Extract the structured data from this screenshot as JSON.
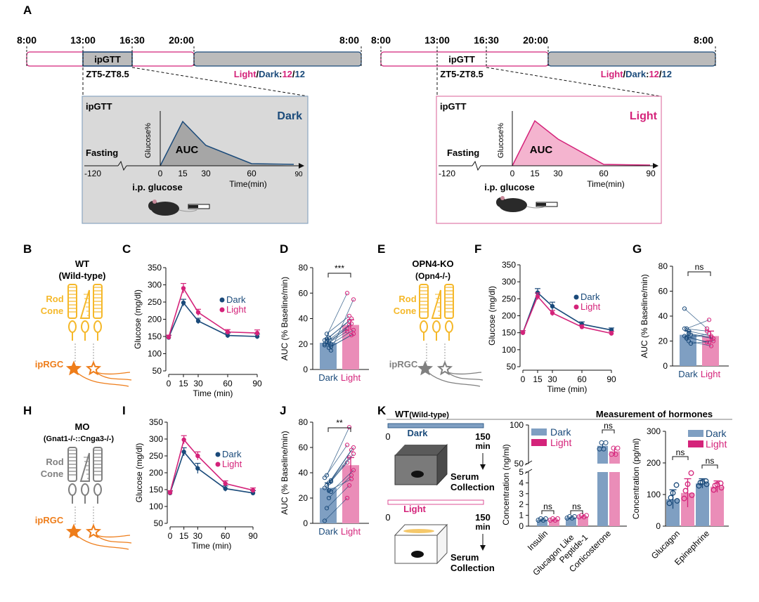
{
  "colors": {
    "dark": "#1a4a7a",
    "light": "#d4237a",
    "dark_bar": "#7f9fc2",
    "light_bar": "#ea8db8",
    "rod": "#f5b82a",
    "iprgc": "#ee7d1a",
    "inactive": "#808080"
  },
  "panel_labels": {
    "A": "A",
    "B": "B",
    "C": "C",
    "D": "D",
    "E": "E",
    "F": "F",
    "G": "G",
    "H": "H",
    "I": "I",
    "J": "J",
    "K": "K"
  },
  "timeline": {
    "times": [
      "8:00",
      "13:00",
      "16:30",
      "20:00",
      "8:00"
    ],
    "ipgtt": "ipGTT",
    "zt": "ZT5-ZT8.5",
    "light": "Light",
    "dark": "Dark",
    "n12": "12",
    "n12b": "12"
  },
  "schematic": {
    "title": "ipGTT",
    "dark": "Dark",
    "light": "Light",
    "fasting": "Fasting",
    "ylabel": "Glucose%",
    "auc": "AUC",
    "ticks": [
      "-120",
      "0",
      "15",
      "30",
      "60",
      "90"
    ],
    "xlabel": "Time(min)",
    "injection": "i.p. glucose"
  },
  "retina": {
    "wt_title": "WT",
    "wt_sub": "(Wild-type)",
    "ko_title": "OPN4-KO",
    "ko_sub": "(Opn4-/-)",
    "mo_title": "MO",
    "mo_sub": "(Gnat1-/-::Cnga3-/-)",
    "rod": "Rod",
    "cone": "Cone",
    "iprgc": "ipRGC"
  },
  "chart_data": [
    {
      "panel": "C",
      "type": "line",
      "x": [
        0,
        15,
        30,
        60,
        90
      ],
      "xticks": [
        "0",
        "15",
        "30",
        "60",
        "90"
      ],
      "ylim": [
        50,
        350
      ],
      "yticks": [
        50,
        100,
        150,
        200,
        250,
        300,
        350
      ],
      "xlabel": "Time (min)",
      "ylabel": "Glucose (mg/dl)",
      "series": [
        {
          "name": "Dark",
          "values": [
            147,
            248,
            195,
            153,
            150
          ],
          "err": [
            6,
            10,
            8,
            7,
            7
          ]
        },
        {
          "name": "Light",
          "values": [
            148,
            290,
            220,
            163,
            160
          ],
          "err": [
            6,
            14,
            9,
            7,
            9
          ]
        }
      ],
      "legend": "right"
    },
    {
      "panel": "D",
      "type": "bar",
      "categories": [
        "Dark",
        "Light"
      ],
      "values": [
        21,
        35
      ],
      "err": [
        3,
        4
      ],
      "ylim": [
        0,
        80
      ],
      "yticks": [
        0,
        20,
        40,
        60,
        80
      ],
      "ylabel": "AUC (% Baseline/min)",
      "significance": "***",
      "pairs": [
        [
          19,
          30
        ],
        [
          22,
          35
        ],
        [
          25,
          40
        ],
        [
          18,
          28
        ],
        [
          20,
          32
        ],
        [
          24,
          38
        ],
        [
          21,
          36
        ],
        [
          15,
          55
        ],
        [
          23,
          60
        ],
        [
          28,
          42
        ],
        [
          17,
          27
        ],
        [
          20,
          31
        ]
      ]
    },
    {
      "panel": "F",
      "type": "line",
      "x": [
        0,
        15,
        30,
        60,
        90
      ],
      "xticks": [
        "0",
        "15",
        "30",
        "60",
        "90"
      ],
      "ylim": [
        50,
        350
      ],
      "yticks": [
        50,
        100,
        150,
        200,
        250,
        300,
        350
      ],
      "xlabel": "Time (min)",
      "ylabel": "Glucose (mg/dl)",
      "series": [
        {
          "name": "Dark",
          "values": [
            150,
            268,
            228,
            175,
            158
          ],
          "err": [
            6,
            12,
            12,
            7,
            6
          ]
        },
        {
          "name": "Light",
          "values": [
            150,
            257,
            208,
            167,
            148
          ],
          "err": [
            6,
            10,
            8,
            6,
            6
          ]
        }
      ],
      "legend": "right"
    },
    {
      "panel": "G",
      "type": "bar",
      "categories": [
        "Dark",
        "Light"
      ],
      "values": [
        25,
        24
      ],
      "err": [
        3,
        4
      ],
      "ylim": [
        0,
        80
      ],
      "yticks": [
        0,
        20,
        40,
        60,
        80
      ],
      "ylabel": "AUC (% Baseline/min)",
      "significance": "ns",
      "pairs": [
        [
          46,
          30
        ],
        [
          30,
          37
        ],
        [
          28,
          24
        ],
        [
          25,
          22
        ],
        [
          24,
          19
        ],
        [
          22,
          26
        ],
        [
          20,
          16
        ],
        [
          18,
          20
        ],
        [
          30,
          28
        ],
        [
          23,
          19
        ],
        [
          26,
          23
        ]
      ]
    },
    {
      "panel": "I",
      "type": "line",
      "x": [
        0,
        15,
        30,
        60,
        90
      ],
      "xticks": [
        "0",
        "15",
        "30",
        "60",
        "90"
      ],
      "ylim": [
        50,
        350
      ],
      "yticks": [
        50,
        100,
        150,
        200,
        250,
        300,
        350
      ],
      "xlabel": "Time (min)",
      "ylabel": "Glucose (mg/dl)",
      "series": [
        {
          "name": "Dark",
          "values": [
            140,
            262,
            213,
            153,
            140
          ],
          "err": [
            6,
            12,
            15,
            8,
            7
          ]
        },
        {
          "name": "Light",
          "values": [
            141,
            298,
            250,
            168,
            148
          ],
          "err": [
            6,
            12,
            12,
            8,
            7
          ]
        }
      ],
      "legend": "right"
    },
    {
      "panel": "J",
      "type": "bar",
      "categories": [
        "Dark",
        "Light"
      ],
      "values": [
        28,
        46
      ],
      "err": [
        4,
        6
      ],
      "ylim": [
        0,
        80
      ],
      "yticks": [
        0,
        20,
        40,
        60,
        80
      ],
      "ylabel": "AUC (% Baseline/min)",
      "significance": "**",
      "pairs": [
        [
          2,
          20
        ],
        [
          12,
          30
        ],
        [
          20,
          38
        ],
        [
          25,
          42
        ],
        [
          28,
          48
        ],
        [
          30,
          52
        ],
        [
          32,
          58
        ],
        [
          34,
          60
        ],
        [
          36,
          62
        ],
        [
          38,
          76
        ],
        [
          26,
          35
        ],
        [
          33,
          55
        ]
      ]
    },
    {
      "panel": "K1",
      "type": "bar",
      "categories": [
        "Insulin",
        "Glucagon Like Peptide-1",
        "Corticosterone"
      ],
      "ylabel": "Concentration (ng/ml)",
      "ylim_lower": [
        0,
        5
      ],
      "ylim_upper": [
        50,
        100
      ],
      "series": [
        {
          "name": "Dark",
          "values": [
            0.6,
            0.8,
            73
          ],
          "err": [
            0.05,
            0.05,
            3
          ]
        },
        {
          "name": "Light",
          "values": [
            0.6,
            0.9,
            66
          ],
          "err": [
            0.05,
            0.1,
            5
          ]
        }
      ],
      "significance": [
        "ns",
        "ns",
        "ns"
      ],
      "legend": "top-left"
    },
    {
      "panel": "K2",
      "type": "bar",
      "categories": [
        "Glucagon",
        "Epinephrine"
      ],
      "ylabel": "Concentration (pg/ml)",
      "ylim": [
        0,
        300
      ],
      "yticks": [
        0,
        100,
        200,
        300
      ],
      "series": [
        {
          "name": "Dark",
          "values": [
            85,
            135
          ],
          "err": [
            30,
            15
          ]
        },
        {
          "name": "Light",
          "values": [
            105,
            125
          ],
          "err": [
            45,
            18
          ]
        }
      ],
      "significance": [
        "ns",
        "ns"
      ],
      "legend": "top-right"
    }
  ],
  "panel_k": {
    "wt": "WT",
    "wt_sub": "(Wild-type)",
    "header": "Measurement of hormones",
    "dark": "Dark",
    "light": "Light",
    "t0": "0",
    "t150": "150",
    "min": "min",
    "serum1": "Serum",
    "serum2": "Collection",
    "legend_dark": "Dark",
    "legend_light": "Light",
    "ns": "ns",
    "lower_ticks": [
      "0",
      "1",
      "2",
      "3",
      "4",
      "5"
    ],
    "upper_ticks": [
      "50",
      "100"
    ],
    "k2_ticks": [
      "0",
      "100",
      "200",
      "300"
    ]
  }
}
